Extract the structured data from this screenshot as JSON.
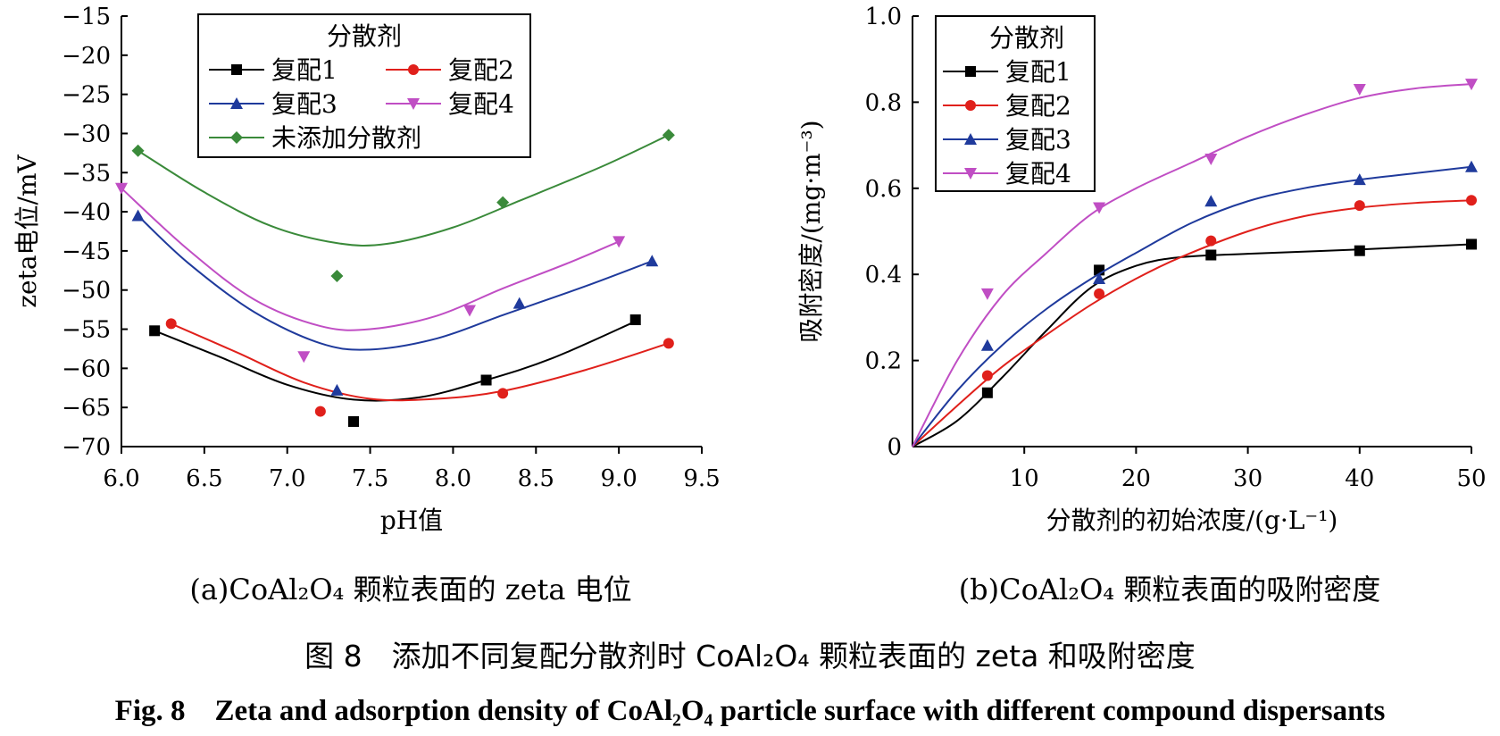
{
  "chart_data": [
    {
      "id": "a",
      "type": "scatter",
      "caption": "(a)CoAl₂O₄ 颗粒表面的 zeta 电位",
      "xlabel": "pH值",
      "ylabel": "zeta电位/mV",
      "xlim": [
        6.0,
        9.5
      ],
      "ylim": [
        -70,
        -15
      ],
      "xticks": [
        "6.0",
        "6.5",
        "7.0",
        "7.5",
        "8.0",
        "8.5",
        "9.0",
        "9.5"
      ],
      "xtick_values": [
        6.0,
        6.5,
        7.0,
        7.5,
        8.0,
        8.5,
        9.0,
        9.5
      ],
      "yticks": [
        "−15",
        "−20",
        "−25",
        "−30",
        "−35",
        "−40",
        "−45",
        "−50",
        "−55",
        "−60",
        "−65",
        "−70"
      ],
      "ytick_values": [
        -15,
        -20,
        -25,
        -30,
        -35,
        -40,
        -45,
        -50,
        -55,
        -60,
        -65,
        -70
      ],
      "legend_title": "分散剂",
      "legend_position": "top-center",
      "series": [
        {
          "name": "复配1",
          "color": "#000000",
          "marker": "square",
          "points": [
            [
              6.2,
              -55.2
            ],
            [
              7.4,
              -66.8
            ],
            [
              8.2,
              -61.5
            ],
            [
              9.1,
              -53.8
            ]
          ],
          "fit": [
            [
              6.2,
              -55.2
            ],
            [
              6.6,
              -58.6
            ],
            [
              7.0,
              -62.1
            ],
            [
              7.4,
              -64.0
            ],
            [
              7.8,
              -63.7
            ],
            [
              8.2,
              -61.5
            ],
            [
              8.6,
              -58.7
            ],
            [
              9.1,
              -54.0
            ]
          ]
        },
        {
          "name": "复配2",
          "color": "#e0201b",
          "marker": "circle",
          "points": [
            [
              6.3,
              -54.3
            ],
            [
              7.2,
              -65.5
            ],
            [
              8.3,
              -63.2
            ],
            [
              9.3,
              -56.8
            ]
          ],
          "fit": [
            [
              6.3,
              -54.3
            ],
            [
              6.7,
              -58.0
            ],
            [
              7.1,
              -61.8
            ],
            [
              7.5,
              -63.9
            ],
            [
              7.9,
              -63.9
            ],
            [
              8.3,
              -62.9
            ],
            [
              8.8,
              -60.2
            ],
            [
              9.3,
              -56.8
            ]
          ]
        },
        {
          "name": "复配3",
          "color": "#1f3a9c",
          "marker": "triangle-up",
          "points": [
            [
              6.1,
              -40.5
            ],
            [
              7.3,
              -62.8
            ],
            [
              8.4,
              -51.7
            ],
            [
              9.2,
              -46.3
            ]
          ],
          "fit": [
            [
              6.1,
              -40.5
            ],
            [
              6.4,
              -46.5
            ],
            [
              6.8,
              -52.8
            ],
            [
              7.2,
              -56.8
            ],
            [
              7.5,
              -57.6
            ],
            [
              7.9,
              -56.2
            ],
            [
              8.3,
              -53.2
            ],
            [
              8.8,
              -49.5
            ],
            [
              9.2,
              -46.3
            ]
          ]
        },
        {
          "name": "复配4",
          "color": "#c04ec4",
          "marker": "triangle-down",
          "points": [
            [
              6.0,
              -37.0
            ],
            [
              7.1,
              -58.5
            ],
            [
              8.1,
              -52.6
            ],
            [
              9.0,
              -43.8
            ]
          ],
          "fit": [
            [
              6.0,
              -37.0
            ],
            [
              6.4,
              -44.8
            ],
            [
              6.8,
              -51.2
            ],
            [
              7.2,
              -54.6
            ],
            [
              7.5,
              -55.0
            ],
            [
              7.9,
              -53.3
            ],
            [
              8.3,
              -49.8
            ],
            [
              8.7,
              -46.5
            ],
            [
              9.0,
              -43.8
            ]
          ]
        },
        {
          "name": "未添加分散剂",
          "color": "#3a8a3a",
          "marker": "diamond",
          "points": [
            [
              6.1,
              -32.2
            ],
            [
              7.3,
              -48.2
            ],
            [
              8.3,
              -38.8
            ],
            [
              9.3,
              -30.2
            ]
          ],
          "fit": [
            [
              6.1,
              -32.2
            ],
            [
              6.5,
              -37.5
            ],
            [
              6.9,
              -41.8
            ],
            [
              7.3,
              -44.0
            ],
            [
              7.6,
              -44.1
            ],
            [
              8.0,
              -42.0
            ],
            [
              8.4,
              -38.6
            ],
            [
              8.9,
              -34.2
            ],
            [
              9.3,
              -30.2
            ]
          ]
        }
      ]
    },
    {
      "id": "b",
      "type": "scatter",
      "caption": "(b)CoAl₂O₄ 颗粒表面的吸附密度",
      "xlabel": "分散剂的初始浓度/(g·L⁻¹)",
      "ylabel": "吸附密度/(mg·m⁻³)",
      "xlim": [
        0,
        50
      ],
      "ylim": [
        0,
        1.0
      ],
      "xticks": [
        "10",
        "20",
        "30",
        "40",
        "50"
      ],
      "xtick_values": [
        10,
        20,
        30,
        40,
        50
      ],
      "yticks": [
        "0",
        "0.2",
        "0.4",
        "0.6",
        "0.8",
        "1.0"
      ],
      "ytick_values": [
        0,
        0.2,
        0.4,
        0.6,
        0.8,
        1.0
      ],
      "legend_title": "分散剂",
      "legend_position": "top-left",
      "series": [
        {
          "name": "复配1",
          "color": "#000000",
          "marker": "square",
          "points": [
            [
              6.7,
              0.125
            ],
            [
              16.7,
              0.41
            ],
            [
              26.7,
              0.445
            ],
            [
              40,
              0.455
            ],
            [
              50,
              0.47
            ]
          ],
          "fit": [
            [
              0,
              0
            ],
            [
              4,
              0.06
            ],
            [
              8,
              0.16
            ],
            [
              12,
              0.27
            ],
            [
              16,
              0.37
            ],
            [
              20,
              0.42
            ],
            [
              24,
              0.44
            ],
            [
              30,
              0.448
            ],
            [
              40,
              0.458
            ],
            [
              50,
              0.47
            ]
          ]
        },
        {
          "name": "复配2",
          "color": "#e0201b",
          "marker": "circle",
          "points": [
            [
              6.7,
              0.165
            ],
            [
              16.7,
              0.355
            ],
            [
              26.7,
              0.478
            ],
            [
              40,
              0.56
            ],
            [
              50,
              0.572
            ]
          ],
          "fit": [
            [
              0,
              0
            ],
            [
              4,
              0.095
            ],
            [
              8,
              0.185
            ],
            [
              12,
              0.26
            ],
            [
              16,
              0.33
            ],
            [
              20,
              0.39
            ],
            [
              24,
              0.44
            ],
            [
              30,
              0.5
            ],
            [
              35,
              0.535
            ],
            [
              40,
              0.555
            ],
            [
              45,
              0.566
            ],
            [
              50,
              0.572
            ]
          ]
        },
        {
          "name": "复配3",
          "color": "#1f3a9c",
          "marker": "triangle-up",
          "points": [
            [
              6.7,
              0.235
            ],
            [
              16.7,
              0.39
            ],
            [
              26.7,
              0.57
            ],
            [
              40,
              0.62
            ],
            [
              50,
              0.65
            ]
          ],
          "fit": [
            [
              0,
              0
            ],
            [
              4,
              0.13
            ],
            [
              8,
              0.235
            ],
            [
              12,
              0.32
            ],
            [
              16,
              0.39
            ],
            [
              20,
              0.45
            ],
            [
              25,
              0.52
            ],
            [
              30,
              0.57
            ],
            [
              35,
              0.6
            ],
            [
              40,
              0.62
            ],
            [
              45,
              0.635
            ],
            [
              50,
              0.65
            ]
          ]
        },
        {
          "name": "复配4",
          "color": "#c04ec4",
          "marker": "triangle-down",
          "points": [
            [
              6.7,
              0.355
            ],
            [
              16.7,
              0.555
            ],
            [
              26.7,
              0.668
            ],
            [
              40,
              0.83
            ],
            [
              50,
              0.842
            ]
          ],
          "fit": [
            [
              0,
              0
            ],
            [
              4,
              0.2
            ],
            [
              8,
              0.35
            ],
            [
              12,
              0.45
            ],
            [
              16,
              0.54
            ],
            [
              20,
              0.6
            ],
            [
              25,
              0.66
            ],
            [
              30,
              0.72
            ],
            [
              35,
              0.77
            ],
            [
              40,
              0.81
            ],
            [
              45,
              0.832
            ],
            [
              50,
              0.842
            ]
          ]
        }
      ]
    }
  ],
  "figure_caption_cn": "图 8　添加不同复配分散剂时 CoAl₂O₄ 颗粒表面的 zeta 和吸附密度",
  "figure_caption_en": "Fig. 8　Zeta and adsorption density of CoAl₂O₄ particle surface with different compound dispersants"
}
